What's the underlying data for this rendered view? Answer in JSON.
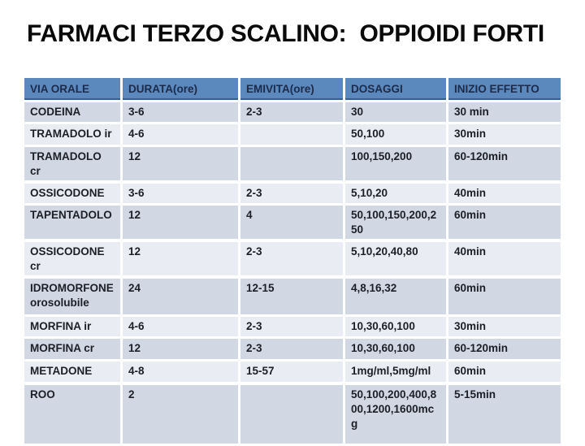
{
  "slide": {
    "title": "FARMACI TERZO SCALINO:  OPPIOIDI FORTI"
  },
  "colors": {
    "header_bg": "#5b88bd",
    "header_text": "#1c2b49",
    "header_border_bottom": "#35608f",
    "row_band_dark": "#d1d7e3",
    "row_band_light": "#e9ecf2",
    "body_text": "#1d1f27",
    "title_text": "#0a0a0a",
    "slide_bg": "#ffffff"
  },
  "table": {
    "columns": [
      "VIA ORALE",
      "DURATA(ore)",
      "EMIVITA(ore)",
      "DOSAGGI",
      "INIZIO EFFETTO"
    ],
    "rows": [
      {
        "via_orale": "CODEINA",
        "durata": "3-6",
        "emivita": "2-3",
        "dosaggi": "30",
        "inizio_effetto": "30 min",
        "band": "dark",
        "group_start": false
      },
      {
        "via_orale": "TRAMADOLO ir",
        "durata": "4-6",
        "emivita": "",
        "dosaggi": "50,100",
        "inizio_effetto": "30min",
        "band": "light",
        "group_start": false
      },
      {
        "via_orale": "TRAMADOLO cr",
        "durata": "12",
        "emivita": "",
        "dosaggi": "100,150,200",
        "inizio_effetto": "60-120min",
        "band": "dark",
        "group_start": false
      },
      {
        "via_orale": "OSSICODONE",
        "durata": "3-6",
        "emivita": "2-3",
        "dosaggi": "5,10,20",
        "inizio_effetto": "40min",
        "band": "light",
        "group_start": true
      },
      {
        "via_orale": "TAPENTADOLO",
        "durata": "12",
        "emivita": "4",
        "dosaggi": "50,100,150,200,250",
        "inizio_effetto": "60min",
        "band": "dark",
        "group_start": false
      },
      {
        "via_orale": "OSSICODONE cr",
        "durata": "12",
        "emivita": "2-3",
        "dosaggi": "5,10,20,40,80",
        "inizio_effetto": "40min",
        "band": "light",
        "group_start": true
      },
      {
        "via_orale": "IDROMORFONE orosolubile",
        "durata": "24",
        "emivita": "12-15",
        "dosaggi": "4,8,16,32",
        "inizio_effetto": "60min",
        "band": "dark",
        "group_start": true
      },
      {
        "via_orale": "MORFINA ir",
        "durata": "4-6",
        "emivita": "2-3",
        "dosaggi": "10,30,60,100",
        "inizio_effetto": "30min",
        "band": "light",
        "group_start": false
      },
      {
        "via_orale": "MORFINA cr",
        "durata": "12",
        "emivita": "2-3",
        "dosaggi": "10,30,60,100",
        "inizio_effetto": "60-120min",
        "band": "dark",
        "group_start": false
      },
      {
        "via_orale": "METADONE",
        "durata": "4-8",
        "emivita": "15-57",
        "dosaggi": "1mg/ml,5mg/ml",
        "inizio_effetto": "60min",
        "band": "light",
        "group_start": false
      },
      {
        "via_orale": "ROO",
        "durata": "2",
        "emivita": "",
        "dosaggi": "50,100,200,400,800,1200,1600mcg",
        "inizio_effetto": "5-15min",
        "band": "dark",
        "group_start": true
      }
    ]
  }
}
